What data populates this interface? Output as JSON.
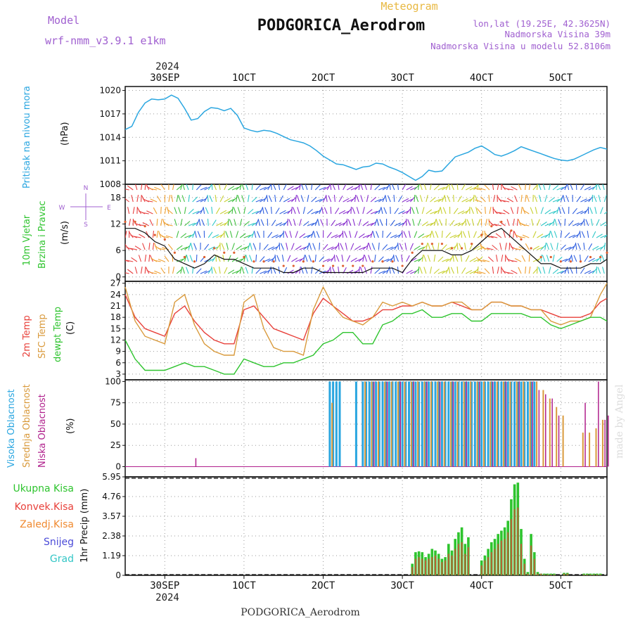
{
  "header": {
    "model_label": "Model",
    "model_name": "wrf-nmm_v3.9.1 e1km",
    "meteogram_label": "Meteogram",
    "station": "PODGORICA_Aerodrom",
    "lonlat": "lon,lat (19.25E, 42.3625N)",
    "elev": "Nadmorska Visina 39m",
    "elev_model": "Nadmorska Visina u modelu 52.8106m",
    "footer_station": "PODGORICA_Aerodrom",
    "credit": "made by Angel",
    "year": "2024"
  },
  "time_axis": {
    "labels": [
      "30SEP",
      "1OCT",
      "2OCT",
      "3OCT",
      "4OCT",
      "5OCT"
    ],
    "label_hours": [
      0,
      24,
      48,
      72,
      96,
      120
    ],
    "start_hour": -12,
    "end_hour": 134,
    "year_label": "2024"
  },
  "colors": {
    "pressure": "#2aa6e0",
    "temp2m": "#e8403a",
    "sfc": "#d99a3c",
    "dewpt": "#2ec42e",
    "wind_line": "#111111",
    "wind_pts": "#e06030",
    "high_cloud": "#2aa6e0",
    "mid_cloud": "#d99a3c",
    "low_cloud": "#b0208c",
    "total_precip": "#2ec42e",
    "conv_precip": "#e8403a",
    "frozen": "#f08a30",
    "snow": "#4b4bd8",
    "hail": "#33c6c6",
    "wind_label": "#2ec42e",
    "wind_dir": "#a060d0"
  },
  "panels": {
    "pressure": {
      "title": "Pritisak na nivou mora",
      "unit": "(hPa)",
      "ticks": [
        "1008",
        "1011",
        "1014",
        "1017",
        "1020"
      ]
    },
    "wind": {
      "title1": "10m Vjetar",
      "title2": "Brzina i Pravac",
      "unit": "(m/s)",
      "ticks": [
        "0",
        "6",
        "12",
        "18"
      ],
      "dir_N": "N",
      "dir_S": "S",
      "dir_W": "W",
      "dir_E": "E"
    },
    "temperature": {
      "t2m": "2m Temp",
      "sfc": "SFC Temp",
      "dew": "dewpt Temp",
      "unit": "(C)",
      "ticks": [
        "3",
        "6",
        "9",
        "12",
        "15",
        "18",
        "21",
        "24",
        "27"
      ]
    },
    "cloud": {
      "high": "Visoka Oblacnost",
      "mid": "Srednja Oblacnost",
      "low": "Niska Oblacnost",
      "unit": "(%)",
      "ticks": [
        "0",
        "25",
        "50",
        "75",
        "100"
      ]
    },
    "precip": {
      "ukupna": "Ukupna Kisa",
      "konvek": "Konvek.Kisa",
      "zaledj": "Zaledj.Kisa",
      "snijeg": "Snijeg",
      "grad": "Grad",
      "ylabel": "1hr Precip (mm)",
      "ticks": [
        "0",
        "1.19",
        "2.38",
        "3.57",
        "4.76",
        "5.95"
      ]
    }
  },
  "chart_data": [
    {
      "type": "line",
      "name": "pressure",
      "ylim": [
        1008,
        1020.5
      ],
      "x": [
        -12,
        -10,
        -8,
        -6,
        -4,
        -2,
        0,
        2,
        4,
        6,
        8,
        10,
        12,
        14,
        16,
        18,
        20,
        22,
        24,
        26,
        28,
        30,
        32,
        34,
        36,
        38,
        40,
        42,
        44,
        46,
        48,
        50,
        52,
        54,
        56,
        58,
        60,
        62,
        64,
        66,
        68,
        70,
        72,
        74,
        76,
        78,
        80,
        82,
        84,
        86,
        88,
        90,
        92,
        94,
        96,
        98,
        100,
        102,
        104,
        106,
        108,
        110,
        112,
        114,
        116,
        118,
        120,
        122,
        124,
        126,
        128,
        130,
        132,
        134
      ],
      "y": [
        1015.0,
        1015.4,
        1017.2,
        1018.4,
        1018.9,
        1018.8,
        1018.9,
        1019.4,
        1019.0,
        1017.7,
        1016.2,
        1016.4,
        1017.3,
        1017.8,
        1017.7,
        1017.4,
        1017.7,
        1016.8,
        1015.2,
        1014.9,
        1014.7,
        1014.9,
        1014.8,
        1014.5,
        1014.1,
        1013.7,
        1013.5,
        1013.3,
        1012.9,
        1012.3,
        1011.6,
        1011.1,
        1010.6,
        1010.5,
        1010.2,
        1009.9,
        1010.2,
        1010.3,
        1010.7,
        1010.6,
        1010.2,
        1009.9,
        1009.5,
        1009.0,
        1008.5,
        1009.0,
        1009.8,
        1009.6,
        1009.7,
        1010.6,
        1011.5,
        1011.8,
        1012.1,
        1012.6,
        1012.9,
        1012.4,
        1011.8,
        1011.6,
        1011.9,
        1012.3,
        1012.8,
        1012.5,
        1012.2,
        1011.9,
        1011.6,
        1011.3,
        1011.1,
        1011.0,
        1011.2,
        1011.6,
        1012.0,
        1012.4,
        1012.7,
        1012.5
      ]
    },
    {
      "type": "line",
      "name": "wind-speed",
      "ylim": [
        -1,
        21
      ],
      "x": [
        -12,
        -9,
        -6,
        -3,
        0,
        3,
        6,
        9,
        12,
        15,
        18,
        21,
        24,
        27,
        30,
        33,
        36,
        39,
        42,
        45,
        48,
        51,
        54,
        57,
        60,
        63,
        66,
        69,
        72,
        75,
        78,
        81,
        84,
        87,
        90,
        93,
        96,
        99,
        102,
        105,
        108,
        111,
        114,
        117,
        120,
        123,
        126,
        129,
        132,
        134
      ],
      "y": [
        11,
        11,
        10,
        8,
        7,
        4,
        3,
        2,
        3,
        5,
        4,
        4,
        3,
        2,
        2,
        2,
        1,
        1,
        2,
        2,
        1,
        1,
        1,
        1,
        1,
        2,
        2,
        2,
        1,
        4,
        6,
        6,
        6,
        5,
        5,
        6,
        8,
        10,
        11,
        9,
        7,
        5,
        3,
        3,
        2,
        2,
        2,
        3,
        3,
        4
      ]
    },
    {
      "type": "line",
      "name": "temperature",
      "ylim": [
        1.5,
        27.5
      ],
      "x": [
        -12,
        -9,
        -6,
        -3,
        0,
        3,
        6,
        9,
        12,
        15,
        18,
        21,
        24,
        27,
        30,
        33,
        36,
        39,
        42,
        45,
        48,
        51,
        54,
        57,
        60,
        63,
        66,
        69,
        72,
        75,
        78,
        81,
        84,
        87,
        90,
        93,
        96,
        99,
        102,
        105,
        108,
        111,
        114,
        117,
        120,
        123,
        126,
        129,
        132,
        134
      ],
      "series": [
        {
          "name": "2m Temp",
          "values": [
            24,
            18,
            15,
            14,
            13,
            19,
            21,
            17,
            14,
            12,
            11,
            11,
            20,
            21,
            18,
            15,
            14,
            13,
            12,
            19,
            23,
            21,
            19,
            17,
            17,
            18,
            20,
            20,
            21,
            21,
            22,
            21,
            21,
            22,
            21,
            20,
            20,
            22,
            22,
            21,
            21,
            20,
            20,
            19,
            18,
            18,
            18,
            19,
            22,
            23
          ]
        },
        {
          "name": "SFC Temp",
          "values": [
            26,
            17,
            13,
            12,
            11,
            22,
            24,
            16,
            11,
            9,
            8,
            8,
            22,
            24,
            15,
            10,
            9,
            9,
            8,
            20,
            26,
            21,
            18,
            17,
            16,
            18,
            22,
            21,
            22,
            21,
            22,
            21,
            21,
            22,
            22,
            20,
            20,
            22,
            22,
            21,
            21,
            20,
            20,
            17,
            16,
            17,
            17,
            18,
            24,
            27
          ]
        },
        {
          "name": "dewpt Temp",
          "values": [
            12,
            7,
            4,
            4,
            4,
            5,
            6,
            5,
            5,
            4,
            3,
            3,
            7,
            6,
            5,
            5,
            6,
            6,
            7,
            8,
            11,
            12,
            14,
            14,
            11,
            11,
            16,
            17,
            19,
            19,
            20,
            18,
            18,
            19,
            19,
            17,
            17,
            19,
            19,
            19,
            19,
            18,
            18,
            16,
            15,
            16,
            17,
            18,
            18,
            17
          ]
        }
      ]
    },
    {
      "type": "bar",
      "name": "cloud-cover",
      "ylim": [
        0,
        100
      ],
      "series": [
        {
          "name": "Visoka Oblacnost",
          "x": [
            50,
            51,
            52,
            53,
            58,
            60,
            61,
            62,
            63,
            64,
            65,
            66,
            67,
            68,
            69,
            70,
            71,
            72,
            73,
            74,
            75,
            76,
            77,
            78,
            79,
            80,
            81,
            82,
            83,
            84,
            85,
            86,
            87,
            88,
            89,
            90,
            91,
            92,
            93,
            94,
            95,
            96,
            97,
            98,
            99,
            100,
            101,
            102,
            103,
            104,
            105,
            106,
            107,
            108,
            109,
            110,
            111,
            112
          ],
          "values": [
            100,
            100,
            100,
            100,
            100,
            100,
            100,
            100,
            100,
            100,
            100,
            100,
            100,
            100,
            100,
            100,
            100,
            100,
            100,
            100,
            100,
            100,
            100,
            100,
            100,
            100,
            100,
            100,
            100,
            100,
            100,
            100,
            100,
            100,
            100,
            100,
            100,
            100,
            100,
            100,
            100,
            100,
            100,
            100,
            100,
            100,
            100,
            100,
            100,
            100,
            100,
            100,
            100,
            100,
            100,
            100,
            100,
            100
          ]
        },
        {
          "name": "Srednja Oblacnost",
          "x": [
            50,
            60,
            62,
            64,
            66,
            68,
            70,
            72,
            74,
            76,
            78,
            80,
            82,
            84,
            86,
            88,
            90,
            92,
            94,
            96,
            98,
            100,
            102,
            104,
            106,
            108,
            110,
            112,
            114,
            116,
            118,
            120,
            126,
            128,
            130,
            132
          ],
          "values": [
            75,
            100,
            100,
            100,
            100,
            100,
            100,
            100,
            100,
            100,
            100,
            100,
            100,
            100,
            100,
            100,
            100,
            100,
            100,
            100,
            100,
            100,
            100,
            100,
            100,
            100,
            100,
            100,
            90,
            80,
            70,
            60,
            40,
            40,
            45,
            55
          ]
        },
        {
          "name": "Niska Oblacnost",
          "x": [
            8,
            62,
            66,
            70,
            74,
            78,
            82,
            86,
            90,
            94,
            98,
            102,
            106,
            110,
            112,
            114,
            116,
            118,
            126,
            130,
            132,
            133
          ],
          "values": [
            10,
            100,
            100,
            100,
            100,
            100,
            100,
            100,
            100,
            100,
            100,
            100,
            100,
            100,
            90,
            85,
            80,
            60,
            75,
            100,
            55,
            60
          ]
        }
      ]
    },
    {
      "type": "bar",
      "name": "precipitation",
      "ylim": [
        0,
        5.95
      ],
      "x": [
        75,
        76,
        77,
        78,
        79,
        80,
        81,
        82,
        83,
        84,
        85,
        86,
        87,
        88,
        89,
        90,
        91,
        92,
        96,
        97,
        98,
        99,
        100,
        101,
        102,
        103,
        104,
        105,
        106,
        107,
        108,
        109,
        110,
        111,
        112,
        113,
        114,
        115,
        116,
        117,
        118,
        121,
        122,
        127,
        128,
        129,
        130,
        131,
        132
      ],
      "series": [
        {
          "name": "Ukupna Kisa",
          "values": [
            0.7,
            1.4,
            1.45,
            1.4,
            1.1,
            1.3,
            1.6,
            1.5,
            1.3,
            1.0,
            1.1,
            1.9,
            1.5,
            2.2,
            2.6,
            2.9,
            1.9,
            2.3,
            0.9,
            1.2,
            1.6,
            2.0,
            2.2,
            2.5,
            2.7,
            2.9,
            3.3,
            4.6,
            5.5,
            5.6,
            2.8,
            1.0,
            0.2,
            2.5,
            1.4,
            0.2,
            0.1,
            0.1,
            0.1,
            0.1,
            0.1,
            0.15,
            0.15,
            0.1,
            0.1,
            0.1,
            0.1,
            0.1,
            0.1
          ]
        },
        {
          "name": "Konvek.Kisa",
          "values": [
            0.5,
            1.0,
            1.1,
            1.0,
            0.9,
            1.0,
            1.1,
            1.2,
            1.0,
            0.8,
            0.9,
            1.3,
            1.2,
            1.6,
            1.9,
            2.0,
            1.3,
            1.7,
            0.6,
            0.9,
            1.1,
            1.4,
            1.6,
            1.9,
            2.1,
            2.2,
            2.6,
            3.4,
            4.0,
            4.1,
            1.9,
            0.7,
            0.1,
            1.8,
            1.0,
            0.1,
            0.1,
            0.05,
            0.05,
            0.05,
            0.05,
            0.1,
            0.1,
            0.05,
            0.05,
            0.05,
            0.05,
            0.05,
            0.05
          ]
        }
      ]
    }
  ]
}
